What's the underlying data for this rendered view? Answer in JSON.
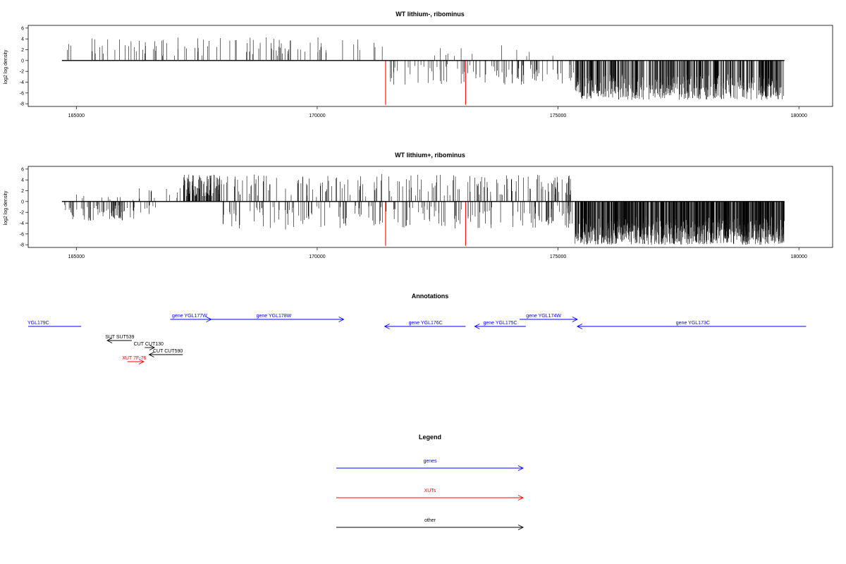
{
  "chart_data": [
    {
      "type": "bar",
      "title": "WT lithium-, ribominus",
      "xlabel": "",
      "ylabel": "log2 log density",
      "xlim": [
        164000,
        180700
      ],
      "ylim": [
        -8.5,
        6.5
      ],
      "x_ticks": [
        165000,
        170000,
        175000,
        180000
      ],
      "y_ticks": [
        6,
        4,
        2,
        0,
        -2,
        -4,
        -6,
        -8
      ],
      "baseline": {
        "from": 164700,
        "to": 179700
      },
      "highlight_color": "#ff0000",
      "highlights": [
        {
          "x": 171420,
          "y": -8.2
        },
        {
          "x": 173080,
          "y": -8.2
        }
      ],
      "regions": [
        {
          "from": 164750,
          "to": 171380,
          "density": 0.014,
          "mode": "pos",
          "max": 4.3
        },
        {
          "from": 171420,
          "to": 175350,
          "density": 0.022,
          "mode": "neg",
          "max": 4.5
        },
        {
          "from": 172400,
          "to": 175350,
          "density": 0.004,
          "mode": "pos",
          "max": 3.0
        },
        {
          "from": 175350,
          "to": 179700,
          "density": 0.11,
          "mode": "neg-dense",
          "max": 7.3
        }
      ]
    },
    {
      "type": "bar",
      "title": "WT lithium+, ribominus",
      "xlabel": "",
      "ylabel": "log2 log density",
      "xlim": [
        164000,
        180700
      ],
      "ylim": [
        -8.5,
        6.5
      ],
      "x_ticks": [
        165000,
        170000,
        175000,
        180000
      ],
      "y_ticks": [
        6,
        4,
        2,
        0,
        -2,
        -4,
        -6,
        -8
      ],
      "baseline": {
        "from": 164700,
        "to": 179700
      },
      "highlight_color": "#ff0000",
      "highlights": [
        {
          "x": 171420,
          "y": -8.2
        },
        {
          "x": 173080,
          "y": -8.2
        }
      ],
      "regions": [
        {
          "from": 164750,
          "to": 166200,
          "density": 0.05,
          "mode": "neg",
          "max": 3.8
        },
        {
          "from": 164750,
          "to": 166200,
          "density": 0.006,
          "mode": "pos",
          "max": 1.6
        },
        {
          "from": 166200,
          "to": 167200,
          "density": 0.02,
          "mode": "mixed",
          "max": 2.6
        },
        {
          "from": 167200,
          "to": 168000,
          "density": 0.12,
          "mode": "pos",
          "max": 5.0
        },
        {
          "from": 168000,
          "to": 171380,
          "density": 0.045,
          "mode": "mixed",
          "max": 5.2
        },
        {
          "from": 171420,
          "to": 175350,
          "density": 0.05,
          "mode": "mixed",
          "max": 5.0
        },
        {
          "from": 175350,
          "to": 179700,
          "density": 0.2,
          "mode": "neg-dense",
          "max": 8.0
        }
      ]
    }
  ],
  "annotations": {
    "title": "Annotations",
    "features": [
      {
        "label": "YGL179C",
        "from": 164000,
        "to": 165100,
        "row": 0,
        "dir": "none",
        "color": "#0000ff",
        "label_at": 164000,
        "label_anchor": "start"
      },
      {
        "label": "gene YGL177W",
        "from": 166950,
        "to": 167800,
        "row": -1,
        "dir": "right",
        "color": "#0000ff",
        "label_at": 167350,
        "label_anchor": "middle"
      },
      {
        "label": "gene YGL178W",
        "from": 166950,
        "to": 170550,
        "row": -1,
        "dir": "right",
        "color": "#0000ff",
        "label_at": 169100,
        "label_anchor": "middle"
      },
      {
        "label": "gene YGL176C",
        "from": 171400,
        "to": 173080,
        "row": 0,
        "dir": "left",
        "color": "#0000ff",
        "label_at": 172250,
        "label_anchor": "middle"
      },
      {
        "label": "gene YGL175C",
        "from": 173270,
        "to": 174330,
        "row": 0,
        "dir": "left",
        "color": "#0000ff",
        "label_at": 173800,
        "label_anchor": "middle"
      },
      {
        "label": "gene YGL174W",
        "from": 174200,
        "to": 175400,
        "row": -1,
        "dir": "right",
        "color": "#0000ff",
        "label_at": 174700,
        "label_anchor": "middle"
      },
      {
        "label": "gene YGL173C",
        "from": 175400,
        "to": 180150,
        "row": 0,
        "dir": "left",
        "color": "#0000ff",
        "label_at": 177800,
        "label_anchor": "middle"
      },
      {
        "label": "SUT SUT539",
        "from": 165640,
        "to": 166150,
        "row": 2,
        "dir": "left",
        "color": "#000000",
        "label_at": 165900,
        "label_anchor": "middle"
      },
      {
        "label": "CUT CUT130",
        "from": 166420,
        "to": 166620,
        "row": 3,
        "dir": "right",
        "color": "#000000",
        "label_at": 166500,
        "label_anchor": "middle"
      },
      {
        "label": "CUT CUT590",
        "from": 166510,
        "to": 167210,
        "row": 4,
        "dir": "left",
        "color": "#000000",
        "label_at": 166900,
        "label_anchor": "middle"
      },
      {
        "label": "XUT 7F-76",
        "from": 166060,
        "to": 166400,
        "row": 5,
        "dir": "right",
        "color": "#ff0000",
        "label_at": 166200,
        "label_anchor": "middle"
      }
    ]
  },
  "legend": {
    "title": "Legend",
    "items": [
      {
        "label": "genes",
        "color": "#0000ff"
      },
      {
        "label": "XUTs",
        "color": "#ff0000"
      },
      {
        "label": "other",
        "color": "#000000"
      }
    ]
  }
}
